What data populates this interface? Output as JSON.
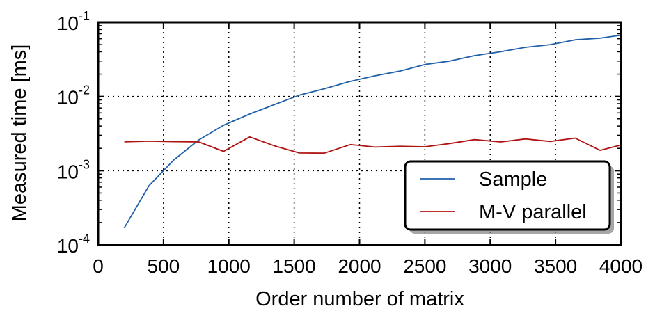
{
  "chart_data": {
    "type": "line",
    "title": "",
    "xlabel": "Order number of matrix",
    "ylabel": "Measured time [ms]",
    "xlim": [
      0,
      4000
    ],
    "ylim": [
      0.0001,
      0.1
    ],
    "yscale": "log",
    "grid": true,
    "grid_style": "dotted",
    "legend_position": "lower-right",
    "x_ticks": [
      "0",
      "500",
      "1000",
      "1500",
      "2000",
      "2500",
      "3000",
      "3500",
      "4000"
    ],
    "y_ticks": [
      {
        "value": 0.0001,
        "base": "10",
        "exp": "-4"
      },
      {
        "value": 0.001,
        "base": "10",
        "exp": "-3"
      },
      {
        "value": 0.01,
        "base": "10",
        "exp": "-2"
      },
      {
        "value": 0.1,
        "base": "10",
        "exp": "-1"
      }
    ],
    "series": [
      {
        "name": "Sample",
        "color": "#1f5fa8",
        "x": [
          200,
          390,
          580,
          770,
          960,
          1160,
          1350,
          1540,
          1730,
          1930,
          2120,
          2310,
          2500,
          2690,
          2880,
          3080,
          3270,
          3460,
          3650,
          3840,
          4000
        ],
        "y": [
          0.00017,
          0.00063,
          0.0014,
          0.0026,
          0.0041,
          0.0058,
          0.0078,
          0.0104,
          0.0127,
          0.016,
          0.019,
          0.022,
          0.027,
          0.03,
          0.0355,
          0.04,
          0.046,
          0.05,
          0.058,
          0.061,
          0.067
        ]
      },
      {
        "name": "M-V parallel",
        "color": "#b01212",
        "x": [
          200,
          390,
          580,
          770,
          960,
          1160,
          1350,
          1540,
          1730,
          1930,
          2120,
          2310,
          2500,
          2690,
          2880,
          3080,
          3270,
          3460,
          3650,
          3840,
          4000
        ],
        "y": [
          0.00245,
          0.0025,
          0.00246,
          0.00244,
          0.00182,
          0.00285,
          0.00216,
          0.00173,
          0.00172,
          0.00225,
          0.00208,
          0.00213,
          0.0021,
          0.00232,
          0.00262,
          0.00244,
          0.00268,
          0.00248,
          0.00275,
          0.00188,
          0.00222
        ]
      }
    ]
  }
}
